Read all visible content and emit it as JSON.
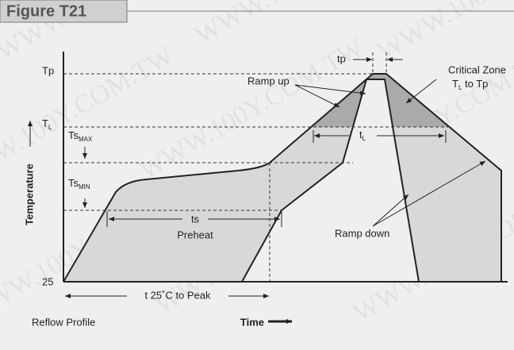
{
  "header": {
    "title": "Figure T21"
  },
  "labels": {
    "tp_level": "Tp",
    "tl_level": {
      "main": "T",
      "sub": "L"
    },
    "ts_max": {
      "main": "Ts",
      "sub": "MAX"
    },
    "ts_min": {
      "main": "Ts",
      "sub": "MIN"
    },
    "base": "25",
    "tp_time": "tp",
    "ramp_up": "Ramp up",
    "critical_zone": {
      "line1": "Critical Zone",
      "main": "T",
      "sub": "L",
      "rest": " to Tp"
    },
    "tl_time": {
      "main": "t",
      "sub": "L"
    },
    "ts_time": "ts",
    "preheat": "Preheat",
    "ramp_down": "Ramp down",
    "total_time": "t 25˚C to Peak",
    "y_axis": "Temperature",
    "x_axis": "Time",
    "caption": "Reflow Profile"
  },
  "watermark": "WWW.100Y.COM.TW"
}
